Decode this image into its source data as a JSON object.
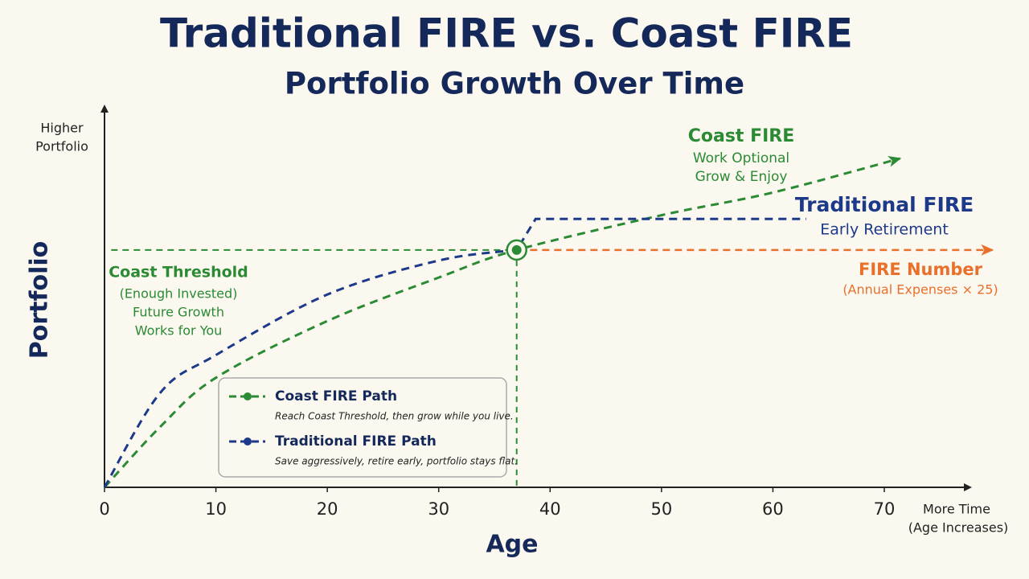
{
  "chart_data": {
    "type": "line",
    "title": "Traditional FIRE vs. Coast FIRE",
    "subtitle": "Portfolio Growth Over Time",
    "x_label": "Age",
    "y_label": "Portfolio",
    "y_axis_note": [
      "Higher",
      "Portfolio"
    ],
    "x_axis_note": [
      "More Time",
      "(Age Increases)"
    ],
    "xlim": [
      0,
      77.6
    ],
    "ylim": [
      0,
      100
    ],
    "xticks": [
      0,
      10,
      20,
      30,
      40,
      50,
      60,
      70
    ],
    "series": [
      {
        "name": "Coast FIRE Path",
        "description": "Reach Coast Threshold, then grow while you live.",
        "color": "#2b8a34",
        "x": [
          0,
          5,
          10,
          20,
          30,
          37,
          50,
          60,
          71.4
        ],
        "values": [
          0,
          16,
          29,
          44,
          55.5,
          62.8,
          72,
          78,
          87
        ]
      },
      {
        "name": "Traditional FIRE Path",
        "description": "Save aggressively, retire early, portfolio stays flat.",
        "color": "#1d3a8a",
        "x": [
          0,
          5,
          10,
          20,
          30,
          37,
          38.7,
          63
        ],
        "values": [
          0,
          25,
          35,
          51,
          60,
          62.8,
          71,
          71
        ]
      }
    ],
    "coast_threshold": {
      "y": 62.8,
      "x": [
        0.6,
        37
      ],
      "color": "#2b8a34"
    },
    "fire_number": {
      "y": 62.8,
      "x": [
        38.2,
        79.7
      ],
      "color": "#e8702a"
    },
    "crossover": {
      "x": 37,
      "y": 62.8,
      "color": "#2b8a34"
    },
    "annotations": [
      {
        "lines": [
          "Coast FIRE",
          "Work Optional",
          "Grow & Enjoy"
        ],
        "color": "#2b8a34"
      },
      {
        "lines": [
          "Traditional FIRE",
          "Early Retirement"
        ],
        "color": "#1d3a8a"
      },
      {
        "lines": [
          "FIRE Number",
          "(Annual Expenses × 25)"
        ],
        "color": "#e8702a"
      },
      {
        "lines": [
          "Coast Threshold",
          "(Enough Invested)",
          "Future Growth",
          "Works for You"
        ],
        "color": "#2b8a34"
      }
    ]
  }
}
